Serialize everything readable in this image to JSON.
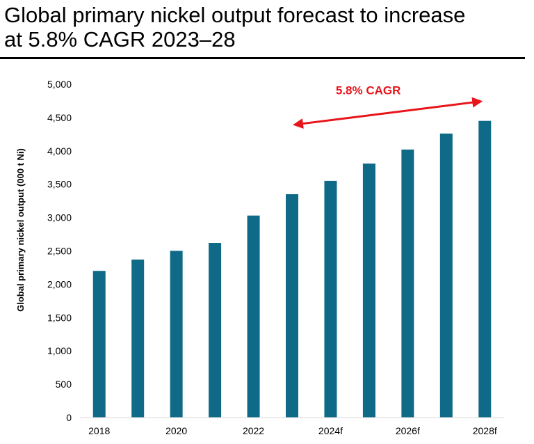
{
  "chart_data": {
    "type": "bar",
    "title_line1": "Global primary nickel output forecast to increase",
    "title_line2": "at 5.8% CAGR 2023–28",
    "ylabel": "Global primary nickel output (000 t Ni)",
    "xlabel": "",
    "categories": [
      "2018",
      "2019",
      "2020",
      "2021",
      "2022",
      "2023",
      "2024f",
      "2025f",
      "2026f",
      "2027f",
      "2028f"
    ],
    "x_tick_labels": [
      "2018",
      "",
      "2020",
      "",
      "2022",
      "",
      "2024f",
      "",
      "2026f",
      "",
      "2028f"
    ],
    "values": [
      2200,
      2370,
      2500,
      2620,
      3030,
      3350,
      3550,
      3810,
      4020,
      4260,
      4450
    ],
    "ylim": [
      0,
      5000
    ],
    "y_ticks": [
      0,
      500,
      1000,
      1500,
      2000,
      2500,
      3000,
      3500,
      4000,
      4500,
      5000
    ],
    "y_tick_labels": [
      "0",
      "500",
      "1,000",
      "1,500",
      "2,000",
      "2,500",
      "3,000",
      "3,500",
      "4,000",
      "4,500",
      "5,000"
    ],
    "grid": false,
    "bar_color": "#0e6a86",
    "annotation": {
      "text": "5.8% CAGR",
      "color": "#e8141b",
      "from_category": "2023",
      "to_category": "2028f"
    }
  }
}
